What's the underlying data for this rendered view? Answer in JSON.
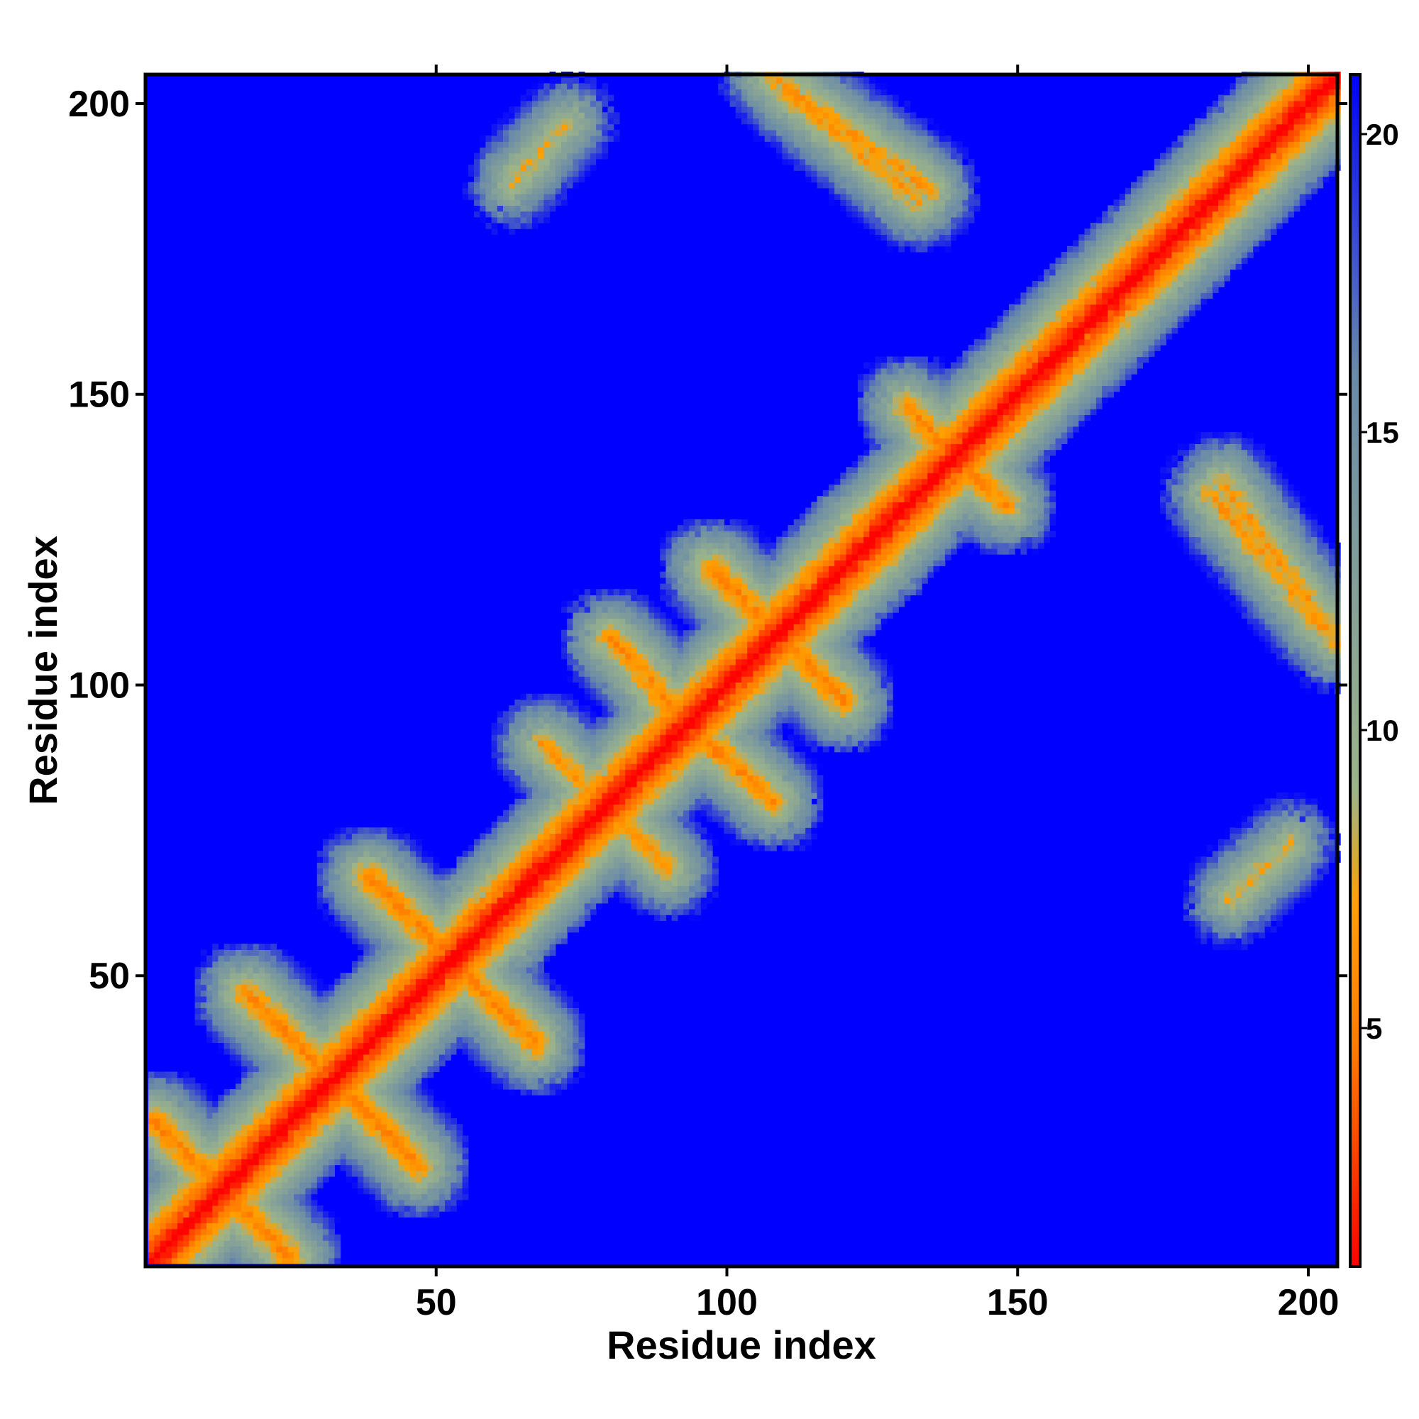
{
  "chart_data": {
    "type": "heatmap",
    "title": "",
    "xlabel": "Residue index",
    "ylabel": "Residue index",
    "xlim": [
      1,
      205
    ],
    "ylim": [
      1,
      205
    ],
    "x_ticks": [
      50,
      100,
      150,
      200
    ],
    "y_ticks": [
      50,
      100,
      150,
      200
    ],
    "colorbar": {
      "range": [
        1,
        21
      ],
      "ticks": [
        5,
        10,
        15,
        20
      ],
      "colors": [
        "#ff0000",
        "#ff7a00",
        "#ffa000",
        "#9cb48a",
        "#6a8aa8",
        "#0000ff"
      ],
      "stops": [
        0,
        0.18,
        0.3,
        0.4,
        0.75,
        1
      ]
    },
    "background_color": "#0000ff",
    "diagonal_value": 1,
    "contact_bands": [
      {
        "x": [
          1,
          205
        ],
        "y": [
          1,
          205
        ],
        "value": 1,
        "kind": "diagonal"
      },
      {
        "x": [
          17,
          47
        ],
        "y": [
          47,
          17
        ],
        "value": 6,
        "kind": "antiparallel"
      },
      {
        "x": [
          1,
          25
        ],
        "y": [
          25,
          1
        ],
        "value": 6,
        "kind": "antiparallel"
      },
      {
        "x": [
          38,
          67
        ],
        "y": [
          67,
          38
        ],
        "value": 6,
        "kind": "antiparallel"
      },
      {
        "x": [
          68,
          90
        ],
        "y": [
          90,
          68
        ],
        "value": 7,
        "kind": "antiparallel"
      },
      {
        "x": [
          80,
          98
        ],
        "y": [
          108,
          88
        ],
        "value": 6,
        "kind": "antiparallel"
      },
      {
        "x": [
          97,
          120
        ],
        "y": [
          120,
          97
        ],
        "value": 6,
        "kind": "antiparallel"
      },
      {
        "x": [
          131,
          145
        ],
        "y": [
          148,
          133
        ],
        "value": 6,
        "kind": "antiparallel"
      },
      {
        "x": [
          107,
          135
        ],
        "y": [
          205,
          185
        ],
        "value": 7,
        "kind": "antiparallel"
      },
      {
        "x": [
          183,
          202
        ],
        "y": [
          133,
          110
        ],
        "value": 7,
        "kind": "antiparallel"
      },
      {
        "x": [
          186,
          197
        ],
        "y": [
          63,
          73
        ],
        "value": 8,
        "kind": "parallel"
      }
    ]
  }
}
